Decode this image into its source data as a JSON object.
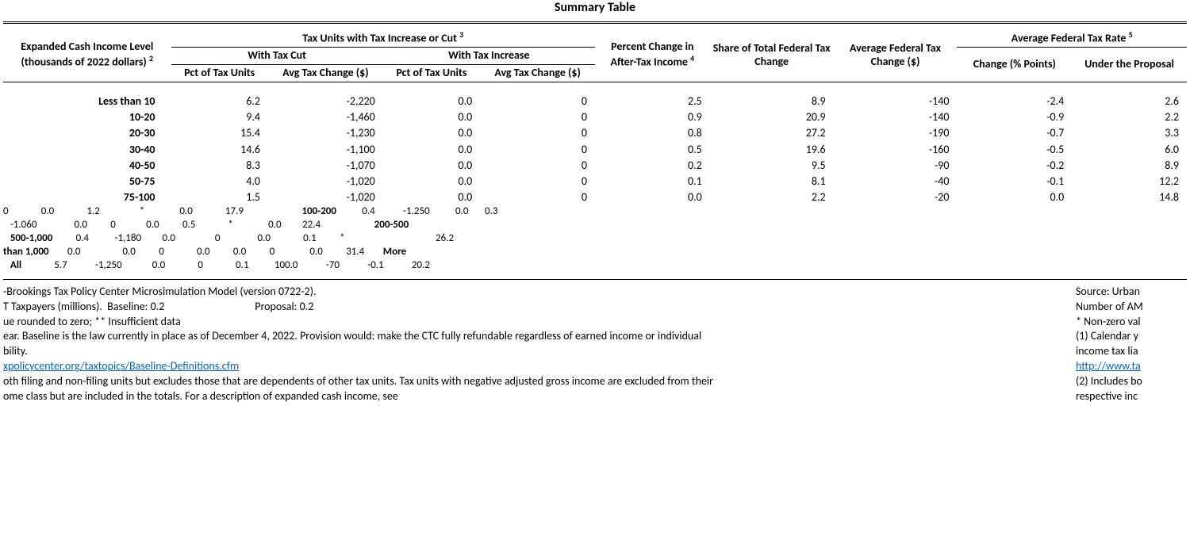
{
  "title": "Summary Table",
  "headers": {
    "income": "Expanded Cash Income Level (thousands of 2022 dollars)",
    "income_sup": "2",
    "tax_units_group": "Tax Units with Tax Increase or Cut",
    "tax_units_sup": "3",
    "with_cut": "With Tax Cut",
    "with_inc": "With Tax Increase",
    "pct_units": "Pct of Tax Units",
    "avg_chg": "Avg Tax Change ($)",
    "pct_after": "Percent Change in After-Tax Income",
    "pct_after_sup": "4",
    "share": "Share of Total Federal Tax Change",
    "avg_fed": "Average Federal Tax Change ($)",
    "avg_rate_group": "Average Federal Tax Rate",
    "avg_rate_sup": "5",
    "chg_pts": "Change (% Points)",
    "under": "Under the Proposal"
  },
  "rows": [
    {
      "label": "Less than 10",
      "cut_pct": "6.2",
      "cut_chg": "-2,220",
      "inc_pct": "0.0",
      "inc_chg": "0",
      "pct_after": "2.5",
      "share": "8.9",
      "avg_fed": "-140",
      "chg_pts": "-2.4",
      "under": "2.6"
    },
    {
      "label": "10-20",
      "cut_pct": "9.4",
      "cut_chg": "-1,460",
      "inc_pct": "0.0",
      "inc_chg": "0",
      "pct_after": "0.9",
      "share": "20.9",
      "avg_fed": "-140",
      "chg_pts": "-0.9",
      "under": "2.2"
    },
    {
      "label": "20-30",
      "cut_pct": "15.4",
      "cut_chg": "-1,230",
      "inc_pct": "0.0",
      "inc_chg": "0",
      "pct_after": "0.8",
      "share": "27.2",
      "avg_fed": "-190",
      "chg_pts": "-0.7",
      "under": "3.3"
    },
    {
      "label": "30-40",
      "cut_pct": "14.6",
      "cut_chg": "-1,100",
      "inc_pct": "0.0",
      "inc_chg": "0",
      "pct_after": "0.5",
      "share": "19.6",
      "avg_fed": "-160",
      "chg_pts": "-0.5",
      "under": "6.0"
    },
    {
      "label": "40-50",
      "cut_pct": "8.3",
      "cut_chg": "-1,070",
      "inc_pct": "0.0",
      "inc_chg": "0",
      "pct_after": "0.2",
      "share": "9.5",
      "avg_fed": "-90",
      "chg_pts": "-0.2",
      "under": "8.9"
    },
    {
      "label": "50-75",
      "cut_pct": "4.0",
      "cut_chg": "-1,020",
      "inc_pct": "0.0",
      "inc_chg": "0",
      "pct_after": "0.1",
      "share": "8.1",
      "avg_fed": "-40",
      "chg_pts": "-0.1",
      "under": "12.2"
    },
    {
      "label": "75-100",
      "cut_pct": "1.5",
      "cut_chg": "-1,020",
      "inc_pct": "0.0",
      "inc_chg": "0",
      "pct_after": "0.0",
      "share": "2.2",
      "avg_fed": "-20",
      "chg_pts": "0.0",
      "under": "14.8"
    }
  ],
  "messy_lines": [
    "0              0.0              1.2                 *               0.0              17.9                         100-200           0.4            -1.250           0.0       0.3",
    "   -1.060                0.0          0             0.0          0.5              *               0.0         22.4                       200-500",
    "   500-1,000          0.4           -1,180         0.0                 0                0.0              0.1          *                                       26.2",
    "than 1,000        0.0                  0.0          0              0.0          0.0          0               0.0          31.4        More",
    "   All              5.7            -1,250             0.0              0              0.1           100.0            -70            -0.1            20.2"
  ],
  "notes_left": [
    "-Brookings Tax Policy Center Microsimulation Model (version 0722-2).",
    "T Taxpayers (millions).  Baseline: 0.2                                    Proposal: 0.2",
    "ue rounded to zero; ** Insufficient data",
    "ear. Baseline is the law currently in place as of December 4, 2022. Provision would: make the CTC fully refundable regardless of earned income or individual",
    "bility."
  ],
  "notes_link_text": "xpolicycenter.org/taxtopics/Baseline-Definitions.cfm",
  "notes_left2": [
    "oth filing and non-filing units but excludes those that are dependents of other tax units. Tax units with negative adjusted gross income are excluded from their",
    "ome class but are included in the totals. For a description of expanded cash income, see"
  ],
  "notes_right": [
    "Source: Urban",
    "Number of AM",
    "* Non-zero val",
    "(1) Calendar y",
    "income tax lia",
    "http://www.ta",
    "(2) Includes bo",
    "respective inc"
  ]
}
